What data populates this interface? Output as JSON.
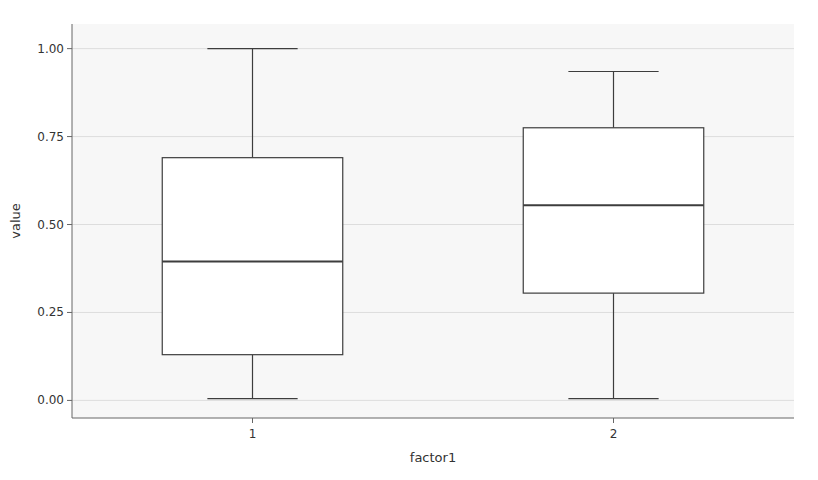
{
  "chart_data": {
    "type": "box",
    "categories": [
      "1",
      "2"
    ],
    "whisker_low": [
      0.005,
      0.005
    ],
    "q1": [
      0.13,
      0.305
    ],
    "median": [
      0.395,
      0.555
    ],
    "q3": [
      0.69,
      0.775
    ],
    "whisker_high": [
      1.0,
      0.935
    ],
    "xlabel": "factor1",
    "ylabel": "value",
    "ylim": [
      -0.05,
      1.07
    ],
    "yticks": [
      {
        "value": 0.0,
        "label": "0.00"
      },
      {
        "value": 0.25,
        "label": "0.25"
      },
      {
        "value": 0.5,
        "label": "0.50"
      },
      {
        "value": 0.75,
        "label": "0.75"
      },
      {
        "value": 1.0,
        "label": "1.00"
      }
    ],
    "grid": true,
    "color": "#3d3d3d"
  }
}
